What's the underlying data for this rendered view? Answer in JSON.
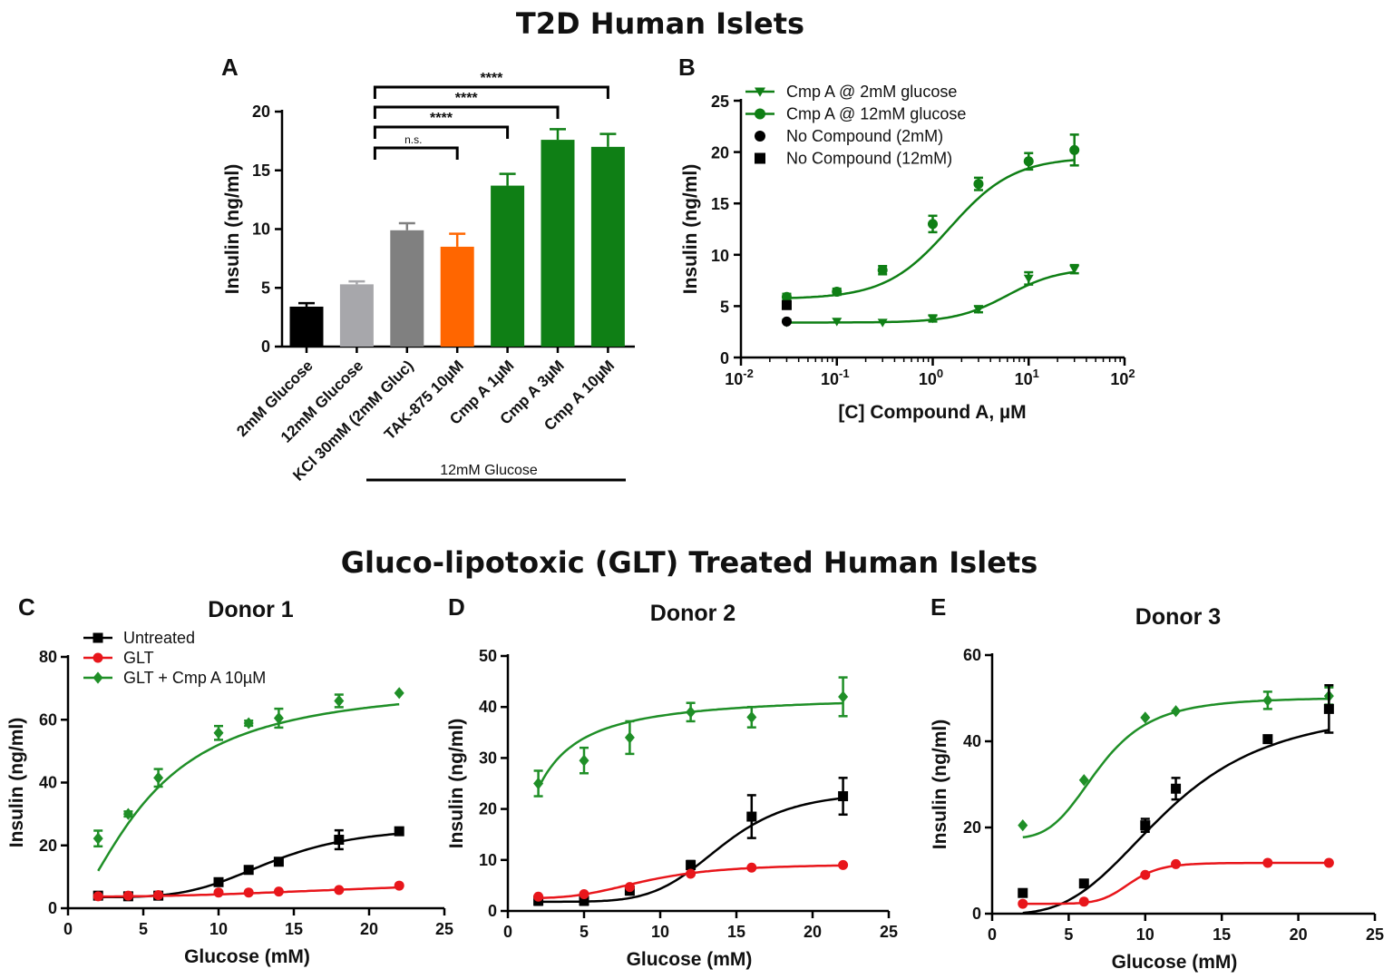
{
  "titles": {
    "top": "T2D Human Islets",
    "bottom": "Gluco-lipotoxic (GLT) Treated Human Islets"
  },
  "chart_data": [
    {
      "panel": "A",
      "type": "bar",
      "ylabel": "Insulin (ng/ml)",
      "ylim": [
        0,
        20
      ],
      "yticks": [
        "0",
        "5",
        "10",
        "15",
        "20"
      ],
      "categories": [
        "2mM Glucose",
        "12mM Glucose",
        "KCl 30mM (2mM Gluc)",
        "TAK-875 10µM",
        "Cmp A 1µM",
        "Cmp A 3µM",
        "Cmp A 10µM"
      ],
      "values": [
        3.4,
        5.3,
        9.9,
        8.5,
        13.7,
        17.6,
        17.0
      ],
      "errors": [
        0.3,
        0.25,
        0.6,
        1.1,
        1.0,
        0.9,
        1.1
      ],
      "colors": [
        "#000000",
        "#a7a7ab",
        "#808080",
        "#ff6600",
        "#0f7f15",
        "#0f7f15",
        "#0f7f15"
      ],
      "group_label": "12mM Glucose",
      "comparisons": [
        {
          "from": 1,
          "to": 3,
          "label": "n.s."
        },
        {
          "from": 1,
          "to": 4,
          "label": "****"
        },
        {
          "from": 1,
          "to": 5,
          "label": "****"
        },
        {
          "from": 1,
          "to": 6,
          "label": "****"
        }
      ]
    },
    {
      "panel": "B",
      "type": "scatter",
      "xscale": "log",
      "xlabel": "[C] Compound A, µM",
      "ylabel": "Insulin (ng/ml)",
      "ylim": [
        0,
        25
      ],
      "yticks": [
        "0",
        "5",
        "10",
        "15",
        "20",
        "25"
      ],
      "xticks": [
        {
          "base": "10",
          "exp": "-2"
        },
        {
          "base": "10",
          "exp": "-1"
        },
        {
          "base": "10",
          "exp": "0"
        },
        {
          "base": "10",
          "exp": "1"
        },
        {
          "base": "10",
          "exp": "2"
        }
      ],
      "series": [
        {
          "name": "Cmp A @ 2mM glucose",
          "color": "#0f7f15",
          "marker": "triangle-down",
          "x": [
            0.03,
            0.1,
            0.3,
            1,
            3,
            10,
            30
          ],
          "y": [
            3.4,
            3.5,
            3.4,
            3.8,
            4.7,
            7.7,
            8.6
          ],
          "err": [
            0.2,
            0.2,
            0.2,
            0.3,
            0.3,
            0.6,
            0.4
          ],
          "fit": {
            "bottom": 3.4,
            "top": 8.7,
            "ec50": 6.0,
            "hill": 1.6
          }
        },
        {
          "name": "Cmp A @ 12mM glucose",
          "color": "#0f7f15",
          "marker": "circle",
          "x": [
            0.03,
            0.1,
            0.3,
            1,
            3,
            10,
            30
          ],
          "y": [
            5.9,
            6.4,
            8.5,
            13.0,
            16.9,
            19.1,
            20.2
          ],
          "err": [
            0.3,
            0.3,
            0.4,
            0.8,
            0.6,
            0.8,
            1.5
          ],
          "fit": {
            "bottom": 5.7,
            "top": 19.5,
            "ec50": 1.5,
            "hill": 1.3
          }
        },
        {
          "name": "No Compound (2mM)",
          "color": "#000000",
          "marker": "circle",
          "x": [
            0.03
          ],
          "y": [
            3.5
          ],
          "err": [
            0.2
          ]
        },
        {
          "name": "No Compound (12mM)",
          "color": "#000000",
          "marker": "square",
          "x": [
            0.03
          ],
          "y": [
            5.1
          ],
          "err": [
            0.3
          ]
        }
      ]
    },
    {
      "panel": "C",
      "type": "line",
      "title": "Donor 1",
      "xlabel": "Glucose (mM)",
      "ylabel": "Insulin (ng/ml)",
      "xlim": [
        0,
        25
      ],
      "ylim": [
        0,
        80
      ],
      "xticks": [
        "0",
        "5",
        "10",
        "15",
        "20",
        "25"
      ],
      "yticks": [
        "0",
        "20",
        "40",
        "60",
        "80"
      ],
      "series": [
        {
          "name": "Untreated",
          "color": "#000000",
          "marker": "square",
          "x": [
            2,
            4,
            6,
            10,
            12,
            14,
            18,
            22
          ],
          "y": [
            4.0,
            3.8,
            4.0,
            8.3,
            12.2,
            14.8,
            21.8,
            24.5
          ],
          "err": [
            0.6,
            0.5,
            0.5,
            0.8,
            0.8,
            0.8,
            3.0,
            0.5
          ],
          "fit": {
            "bottom": 3.5,
            "top": 26,
            "ec50": 13.5,
            "hill": 4.5
          }
        },
        {
          "name": "GLT",
          "color": "#e8161b",
          "marker": "circle",
          "x": [
            2,
            4,
            6,
            10,
            12,
            14,
            18,
            22
          ],
          "y": [
            3.8,
            4.0,
            4.2,
            5.0,
            5.0,
            5.3,
            5.8,
            7.2
          ],
          "err": [
            0.3,
            0.3,
            0.3,
            0.3,
            0.3,
            0.3,
            0.3,
            0.3
          ],
          "fit": {
            "bottom": 3.7,
            "top": 9.5,
            "ec50": 22,
            "hill": 2.5
          }
        },
        {
          "name": "GLT + Cmp A 10µM",
          "color": "#1f8f27",
          "marker": "diamond",
          "x": [
            2,
            4,
            6,
            10,
            12,
            14,
            18,
            22
          ],
          "y": [
            22.2,
            30.0,
            41.5,
            55.8,
            58.9,
            60.5,
            66.0,
            68.5
          ],
          "err": [
            2.5,
            0.8,
            2.8,
            2.2,
            0.8,
            3.0,
            2.0,
            0.6
          ],
          "fit": {
            "bottom": 0,
            "top": 72,
            "ec50": 5.5,
            "hill": 1.6
          }
        }
      ],
      "legend": [
        "Untreated",
        "GLT",
        "GLT + Cmp A 10µM"
      ]
    },
    {
      "panel": "D",
      "type": "line",
      "title": "Donor 2",
      "xlabel": "Glucose (mM)",
      "ylabel": "Insulin (ng/ml)",
      "xlim": [
        0,
        25
      ],
      "ylim": [
        0,
        50
      ],
      "xticks": [
        "0",
        "5",
        "10",
        "15",
        "20",
        "25"
      ],
      "yticks": [
        "0",
        "10",
        "20",
        "30",
        "40",
        "50"
      ],
      "series": [
        {
          "name": "Untreated",
          "color": "#000000",
          "marker": "square",
          "x": [
            2,
            5,
            8,
            12,
            16,
            22
          ],
          "y": [
            2.0,
            2.0,
            4.0,
            9.0,
            18.5,
            22.5
          ],
          "err": [
            0.8,
            0.8,
            0.8,
            0.8,
            4.2,
            3.6
          ],
          "fit": {
            "bottom": 1.8,
            "top": 23.5,
            "ec50": 14.0,
            "hill": 6.0
          }
        },
        {
          "name": "GLT",
          "color": "#e8161b",
          "marker": "circle",
          "x": [
            2,
            5,
            8,
            12,
            16,
            22
          ],
          "y": [
            2.8,
            3.3,
            4.7,
            7.3,
            8.5,
            9.0
          ],
          "err": [
            0.3,
            0.3,
            0.3,
            0.3,
            0.3,
            0.3
          ],
          "fit": {
            "bottom": 2.5,
            "top": 9.2,
            "ec50": 9.0,
            "hill": 3.5
          }
        },
        {
          "name": "GLT + Cmp A 10µM",
          "color": "#1f8f27",
          "marker": "diamond",
          "x": [
            2,
            5,
            8,
            12,
            16,
            22
          ],
          "y": [
            25.0,
            29.5,
            34.0,
            39.0,
            38.0,
            42.0
          ],
          "err": [
            2.5,
            2.5,
            3.2,
            1.8,
            2.0,
            3.8
          ],
          "fit": {
            "bottom": 0,
            "top": 42.5,
            "ec50": 1.6,
            "hill": 1.2
          }
        }
      ]
    },
    {
      "panel": "E",
      "type": "line",
      "title": "Donor 3",
      "xlabel": "Glucose (mM)",
      "ylabel": "Insulin (ng/ml)",
      "xlim": [
        0,
        25
      ],
      "ylim": [
        0,
        60
      ],
      "xticks": [
        "0",
        "5",
        "10",
        "15",
        "20",
        "25"
      ],
      "yticks": [
        "0",
        "20",
        "40",
        "60"
      ],
      "series": [
        {
          "name": "Untreated",
          "color": "#000000",
          "marker": "square",
          "x": [
            2,
            6,
            10,
            12,
            18,
            22
          ],
          "y": [
            4.8,
            7.0,
            20.5,
            29.0,
            40.5,
            47.5
          ],
          "err": [
            0.5,
            0.5,
            1.5,
            2.5,
            0.8,
            5.5
          ],
          "fit": {
            "bottom": 0,
            "top": 48,
            "ec50": 11.5,
            "hill": 3.2
          }
        },
        {
          "name": "GLT",
          "color": "#e8161b",
          "marker": "circle",
          "x": [
            2,
            6,
            10,
            12,
            18,
            22
          ],
          "y": [
            2.3,
            2.8,
            9.0,
            11.5,
            11.8,
            11.8
          ],
          "err": [
            0.3,
            0.3,
            0.4,
            0.4,
            0.3,
            0.3
          ],
          "fit": {
            "bottom": 2.3,
            "top": 11.8,
            "ec50": 9.0,
            "hill": 9.0
          }
        },
        {
          "name": "GLT + Cmp A 10µM",
          "color": "#1f8f27",
          "marker": "diamond",
          "x": [
            2,
            6,
            10,
            12,
            18,
            22
          ],
          "y": [
            20.5,
            31.0,
            45.5,
            47.0,
            49.5,
            50.5
          ],
          "err": [
            0.5,
            0.5,
            0.5,
            0.5,
            2.0,
            2.0
          ],
          "fit": {
            "bottom": 17.5,
            "top": 50.2,
            "ec50": 7.0,
            "hill": 4.0
          }
        }
      ]
    }
  ]
}
